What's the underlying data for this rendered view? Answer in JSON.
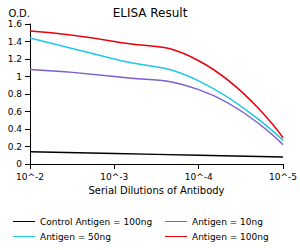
{
  "chart_data": {
    "type": "line",
    "title": "ELISA Result",
    "y_label": "O.D.",
    "x_label": "Serial Dilutions of Antibody",
    "log": "x",
    "grid": false,
    "legend": "bottom",
    "x": [
      0.01,
      0.001,
      0.0001,
      1e-05
    ],
    "xlim": [
      0.01,
      1e-05
    ],
    "xticks": [
      {
        "value": 0.01,
        "label": "10^-2"
      },
      {
        "value": 0.001,
        "label": "10^-3"
      },
      {
        "value": 0.0001,
        "label": "10^-4"
      },
      {
        "value": 1e-05,
        "label": "10^-5"
      }
    ],
    "ylim": [
      0,
      1.6
    ],
    "yticks": [
      0,
      0.2,
      0.4,
      0.6,
      0.8,
      1,
      1.2,
      1.4,
      1.6
    ],
    "series": [
      {
        "name": "Control Antigen = 100ng",
        "color": "#000000",
        "values": [
          0.14,
          0.12,
          0.1,
          0.08
        ]
      },
      {
        "name": "Antigen = 10ng",
        "color": "#7b5fd0",
        "values": [
          1.08,
          1.0,
          0.85,
          0.22
        ]
      },
      {
        "name": "Antigen = 50ng",
        "color": "#1ec8e6",
        "values": [
          1.44,
          1.2,
          0.95,
          0.27
        ]
      },
      {
        "name": "Antigen = 100ng",
        "color": "#e8000b",
        "values": [
          1.52,
          1.4,
          1.18,
          0.3
        ]
      }
    ]
  }
}
